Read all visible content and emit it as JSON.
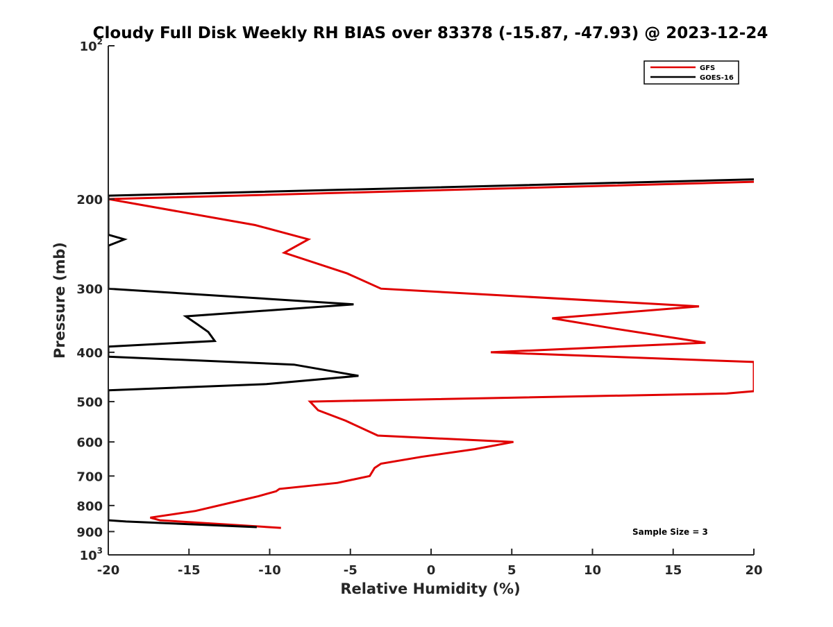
{
  "chart_data": {
    "type": "line",
    "title": "Cloudy Full Disk Weekly RH BIAS over 83378 (-15.87, -47.93) @ 2023-12-24",
    "xlabel": "Relative Humidity (%)",
    "ylabel": "Pressure (mb)",
    "xlim": [
      -20,
      20
    ],
    "ylim": [
      100,
      1000
    ],
    "y_scale": "log",
    "y_reversed": true,
    "grid": false,
    "legend_position": "top-right",
    "x_ticks": [
      -20,
      -15,
      -10,
      -5,
      0,
      5,
      10,
      15,
      20
    ],
    "x_tick_labels": [
      "-20",
      "-15",
      "-10",
      "-5",
      "0",
      "5",
      "10",
      "15",
      "20"
    ],
    "y_ticks": [
      100,
      200,
      300,
      400,
      500,
      600,
      700,
      800,
      900,
      1000
    ],
    "y_tick_labels": [
      {
        "base": "10",
        "sup": "2"
      },
      {
        "base": "200",
        "sup": ""
      },
      {
        "base": "300",
        "sup": ""
      },
      {
        "base": "400",
        "sup": ""
      },
      {
        "base": "500",
        "sup": ""
      },
      {
        "base": "600",
        "sup": ""
      },
      {
        "base": "700",
        "sup": ""
      },
      {
        "base": "800",
        "sup": ""
      },
      {
        "base": "900",
        "sup": ""
      },
      {
        "base": "10",
        "sup": "3"
      }
    ],
    "annotation": "Sample Size = 3",
    "series": [
      {
        "name": "GFS",
        "color": "#e00000",
        "points": [
          [
            20,
            185
          ],
          [
            -20,
            200
          ],
          [
            -10.9,
            225
          ],
          [
            -7.6,
            240
          ],
          [
            -9.1,
            255
          ],
          [
            -5.2,
            280
          ],
          [
            -3.1,
            300
          ],
          [
            16.6,
            325
          ],
          [
            7.5,
            343
          ],
          [
            11.5,
            360
          ],
          [
            17.0,
            383
          ],
          [
            3.7,
            400
          ],
          [
            20,
            418
          ],
          [
            20,
            477
          ],
          [
            18.3,
            482
          ],
          [
            -7.5,
            500
          ],
          [
            -7.0,
            520
          ],
          [
            -5.3,
            545
          ],
          [
            -3.3,
            583
          ],
          [
            5.1,
            600
          ],
          [
            2.7,
            620
          ],
          [
            -0.6,
            642
          ],
          [
            -3.1,
            662
          ],
          [
            -3.5,
            675
          ],
          [
            -3.8,
            700
          ],
          [
            -5.8,
            722
          ],
          [
            -9.4,
            742
          ],
          [
            -9.6,
            750
          ],
          [
            -10.7,
            767
          ],
          [
            -11.9,
            783
          ],
          [
            -14.6,
            820
          ],
          [
            -17.4,
            845
          ],
          [
            -16.8,
            855
          ],
          [
            -9.3,
            885
          ]
        ]
      },
      {
        "name": "GOES-16",
        "color": "#000000",
        "points": [
          [
            20,
            183
          ],
          [
            -20,
            197
          ],
          [
            -20,
            235
          ],
          [
            -19.0,
            240
          ],
          [
            -20,
            247
          ],
          [
            -20,
            300
          ],
          [
            -4.8,
            322
          ],
          [
            -15.2,
            340
          ],
          [
            -14.5,
            352
          ],
          [
            -13.8,
            365
          ],
          [
            -13.4,
            380
          ],
          [
            -20,
            390
          ],
          [
            -20,
            408
          ],
          [
            -8.5,
            423
          ],
          [
            -4.5,
            445
          ],
          [
            -10.2,
            462
          ],
          [
            -20,
            475
          ],
          [
            -20,
            855
          ],
          [
            -18.9,
            860
          ],
          [
            -10.8,
            882
          ]
        ]
      }
    ]
  }
}
